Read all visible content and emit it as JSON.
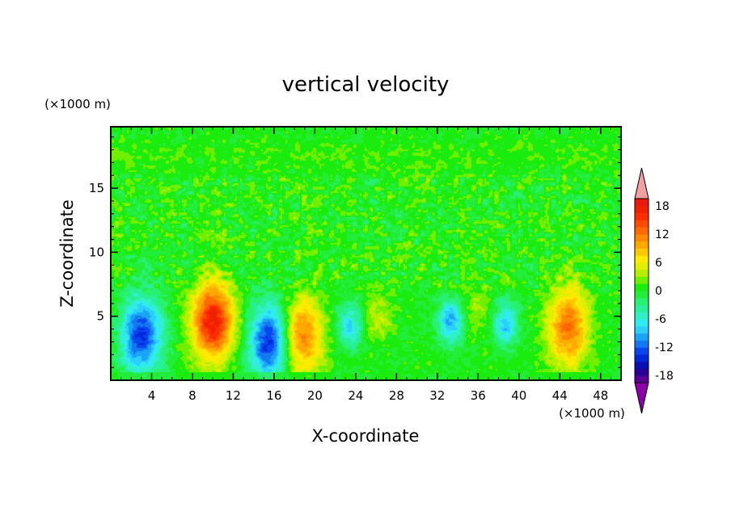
{
  "chart_data": {
    "type": "heatmap",
    "title": "vertical velocity",
    "xlabel": "X-coordinate",
    "ylabel": "Z-coordinate",
    "x_unit": "(×1000 m)",
    "y_unit": "(×1000 m)",
    "xlim": [
      0,
      50
    ],
    "ylim": [
      0,
      19.8
    ],
    "x_ticks": [
      4,
      8,
      12,
      16,
      20,
      24,
      28,
      32,
      36,
      40,
      44,
      48
    ],
    "y_ticks": [
      5,
      10,
      15
    ],
    "colorbar": {
      "levels": [
        -21,
        -19.5,
        -18,
        -16.5,
        -15,
        -13.5,
        -12,
        -10.5,
        -9,
        -7.5,
        -6,
        -4.5,
        -3,
        -1.5,
        0,
        1.5,
        3,
        4.5,
        6,
        7.5,
        9,
        10.5,
        12,
        13.5,
        15,
        16.5,
        18,
        19.5,
        21
      ],
      "tick_labels": [
        "18",
        "12",
        "6",
        "0",
        "-6",
        "-12",
        "-18"
      ],
      "tick_values": [
        18,
        12,
        6,
        0,
        -6,
        -12,
        -18
      ],
      "colors": [
        "#8a00a8",
        "#5a0096",
        "#2a0096",
        "#0a10b0",
        "#0028d8",
        "#0a46f0",
        "#1478f5",
        "#1aa4f8",
        "#2ad0fa",
        "#30ecf0",
        "#30f0c4",
        "#28f09a",
        "#28f070",
        "#22ee3a",
        "#1aec0e",
        "#70f000",
        "#b4f000",
        "#e0f000",
        "#ffea00",
        "#ffc800",
        "#ffa800",
        "#ff8800",
        "#ff6a00",
        "#ff4a00",
        "#ff2c00",
        "#f02000",
        "#e81a10",
        "#f4a0a0"
      ]
    },
    "features": [
      {
        "x": 3.0,
        "z": 3.5,
        "value": -14
      },
      {
        "x": 10.0,
        "z": 4.6,
        "value": 17
      },
      {
        "x": 15.6,
        "z": 3.0,
        "value": -15
      },
      {
        "x": 18.7,
        "z": 3.4,
        "value": 12
      },
      {
        "x": 23.4,
        "z": 4.2,
        "value": -8
      },
      {
        "x": 26.2,
        "z": 5.0,
        "value": 4
      },
      {
        "x": 33.3,
        "z": 4.6,
        "value": -10
      },
      {
        "x": 36.0,
        "z": 5.5,
        "value": 3
      },
      {
        "x": 38.7,
        "z": 4.4,
        "value": -9
      },
      {
        "x": 44.8,
        "z": 4.2,
        "value": 12
      }
    ]
  }
}
